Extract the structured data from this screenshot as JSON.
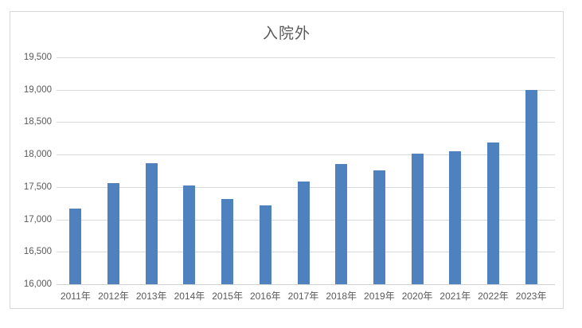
{
  "chart": {
    "title": "入院外"
  },
  "chart_data": {
    "type": "bar",
    "title": "入院外",
    "categories": [
      "2011年",
      "2012年",
      "2013年",
      "2014年",
      "2015年",
      "2016年",
      "2017年",
      "2018年",
      "2019年",
      "2020年",
      "2021年",
      "2022年",
      "2023年"
    ],
    "values": [
      17170,
      17560,
      17870,
      17520,
      17320,
      17210,
      17580,
      17860,
      17760,
      18010,
      18050,
      18190,
      19000
    ],
    "xlabel": "",
    "ylabel": "",
    "ylim": [
      16000,
      19500
    ],
    "ytick_step": 500,
    "ytick_labels": [
      "16,000",
      "16,500",
      "17,000",
      "17,500",
      "18,000",
      "18,500",
      "19,000",
      "19,500"
    ],
    "grid": true,
    "legend_position": "none",
    "bar_color": "#4e81bd",
    "gridline_color": "#d9d9d9",
    "text_color": "#595959"
  }
}
